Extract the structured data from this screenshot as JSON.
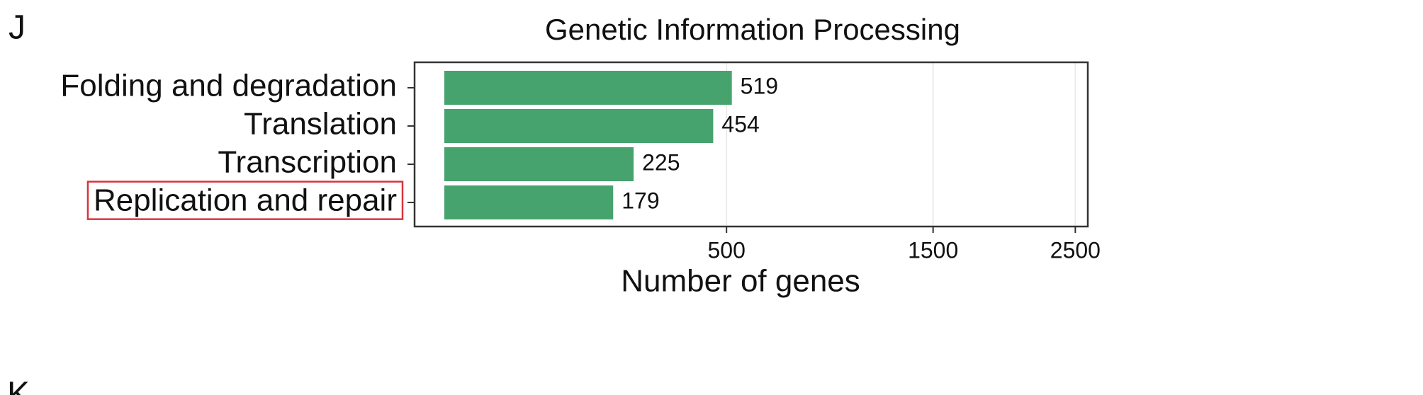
{
  "panel_labels": [
    "J",
    "K"
  ],
  "chart_data": {
    "type": "barh",
    "title": "Genetic Information Processing",
    "categories": [
      "Folding and degradation",
      "Translation",
      "Transcription",
      "Replication and repair"
    ],
    "values": [
      519,
      454,
      225,
      179
    ],
    "color": "#46a36e",
    "xlabel": "Number of genes",
    "xscale": "sqrt",
    "xlim": [
      0,
      2600
    ],
    "xticks": [
      500,
      1500,
      2500
    ],
    "grid": true,
    "highlight": {
      "category_index": 3,
      "color": "#d9343a"
    }
  }
}
